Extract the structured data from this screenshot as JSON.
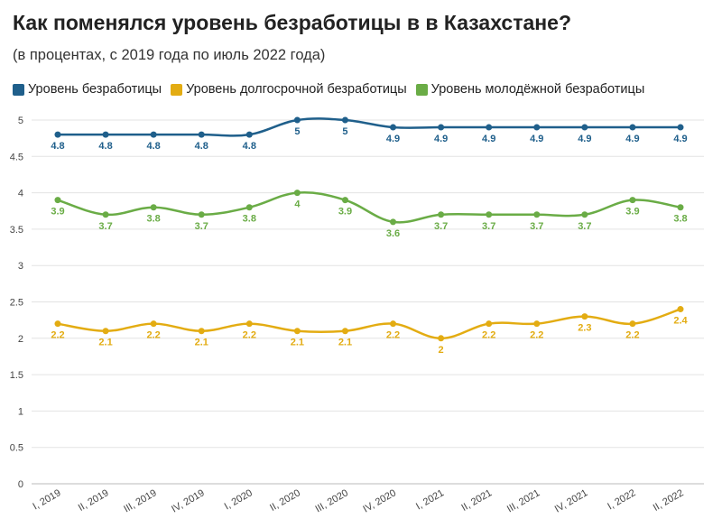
{
  "title": "Как поменялся уровень безработицы в в Казахстане?",
  "subtitle": "(в процентах, с 2019 года по июль 2022 года)",
  "chart_data": {
    "type": "line",
    "categories": [
      "I, 2019",
      "II, 2019",
      "III, 2019",
      "IV, 2019",
      "I, 2020",
      "II, 2020",
      "III, 2020",
      "IV, 2020",
      "I, 2021",
      "II, 2021",
      "III, 2021",
      "IV, 2021",
      "I, 2022",
      "II, 2022"
    ],
    "series": [
      {
        "name": "Уровень безработицы",
        "color": "#1f5f8b",
        "values": [
          4.8,
          4.8,
          4.8,
          4.8,
          4.8,
          5,
          5,
          4.9,
          4.9,
          4.9,
          4.9,
          4.9,
          4.9,
          4.9
        ],
        "labels": [
          "4.8",
          "4.8",
          "4.8",
          "4.8",
          "4.8",
          "5",
          "5",
          "4.9",
          "4.9",
          "4.9",
          "4.9",
          "4.9",
          "4.9",
          "4.9"
        ]
      },
      {
        "name": "Уровень долгосрочной безработицы",
        "color": "#e3ac12",
        "values": [
          2.2,
          2.1,
          2.2,
          2.1,
          2.2,
          2.1,
          2.1,
          2.2,
          2,
          2.2,
          2.2,
          2.3,
          2.2,
          2.4
        ],
        "labels": [
          "2.2",
          "2.1",
          "2.2",
          "2.1",
          "2.2",
          "2.1",
          "2.1",
          "2.2",
          "2",
          "2.2",
          "2.2",
          "2.3",
          "2.2",
          "2.4"
        ]
      },
      {
        "name": "Уровень молодёжной безработицы",
        "color": "#6aac46",
        "values": [
          3.9,
          3.7,
          3.8,
          3.7,
          3.8,
          4,
          3.9,
          3.6,
          3.7,
          3.7,
          3.7,
          3.7,
          3.9,
          3.8
        ],
        "labels": [
          "3.9",
          "3.7",
          "3.8",
          "3.7",
          "3.8",
          "4",
          "3.9",
          "3.6",
          "3.7",
          "3.7",
          "3.7",
          "3.7",
          "3.9",
          "3.8"
        ]
      }
    ],
    "yticks": [
      "0",
      "0.5",
      "1",
      "1.5",
      "2",
      "2.5",
      "3",
      "3.5",
      "4",
      "4.5",
      "5"
    ],
    "ylim": [
      0,
      5
    ],
    "grid": true,
    "legend_position": "top-left"
  }
}
